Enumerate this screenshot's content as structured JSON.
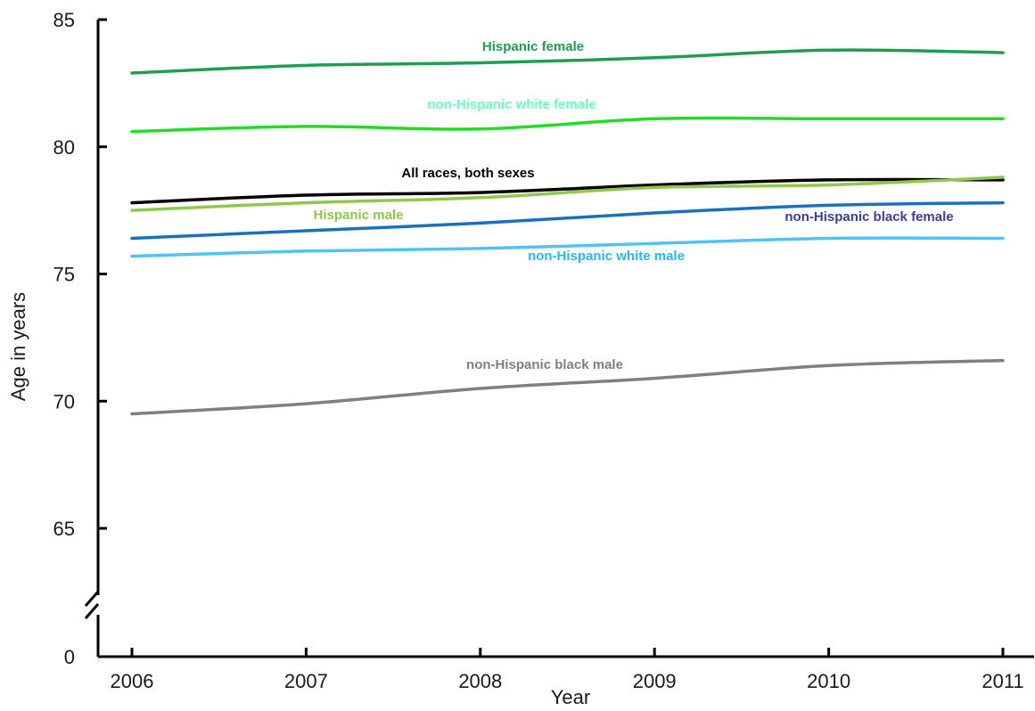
{
  "chart_data": {
    "type": "line",
    "title": "",
    "xlabel": "Year",
    "ylabel": "Age in years",
    "x": [
      2006,
      2007,
      2008,
      2009,
      2010,
      2011
    ],
    "x_tick_labels": [
      "2006",
      "2007",
      "2008",
      "2009",
      "2010",
      "2011"
    ],
    "y_tick_labels": [
      "0",
      "65",
      "70",
      "75",
      "80",
      "85"
    ],
    "y_ticks": [
      0,
      65,
      70,
      75,
      80,
      85
    ],
    "ylim": [
      0,
      85
    ],
    "axis_break": {
      "from": 0,
      "to": 62
    },
    "grid": false,
    "legend": "inline labels",
    "series": [
      {
        "name": "Hispanic female",
        "color": "#1e9e50",
        "label_color": "#1e9e50",
        "values": [
          82.9,
          83.2,
          83.3,
          83.5,
          83.8,
          83.7
        ]
      },
      {
        "name": "non-Hispanic white female",
        "color": "#22dd22",
        "label_color": "#66ffbb",
        "values": [
          80.6,
          80.8,
          80.7,
          81.1,
          81.1,
          81.1
        ]
      },
      {
        "name": "All races, both sexes",
        "color": "#000000",
        "label_color": "#000000",
        "values": [
          77.8,
          78.1,
          78.2,
          78.5,
          78.7,
          78.7
        ]
      },
      {
        "name": "Hispanic male",
        "color": "#8ec94a",
        "label_color": "#8ec94a",
        "values": [
          77.5,
          77.8,
          78.0,
          78.4,
          78.5,
          78.8
        ]
      },
      {
        "name": "non-Hispanic black female",
        "color": "#1a6fbf",
        "label_color": "#3d3d9e",
        "values": [
          76.4,
          76.7,
          77.0,
          77.4,
          77.7,
          77.8
        ]
      },
      {
        "name": "non-Hispanic white male",
        "color": "#4fc3f7",
        "label_color": "#29b6f6",
        "values": [
          75.7,
          75.9,
          76.0,
          76.2,
          76.4,
          76.4
        ]
      },
      {
        "name": "non-Hispanic black male",
        "color": "#808080",
        "label_color": "#808080",
        "values": [
          69.5,
          69.9,
          70.5,
          70.9,
          71.4,
          71.6
        ]
      }
    ]
  }
}
